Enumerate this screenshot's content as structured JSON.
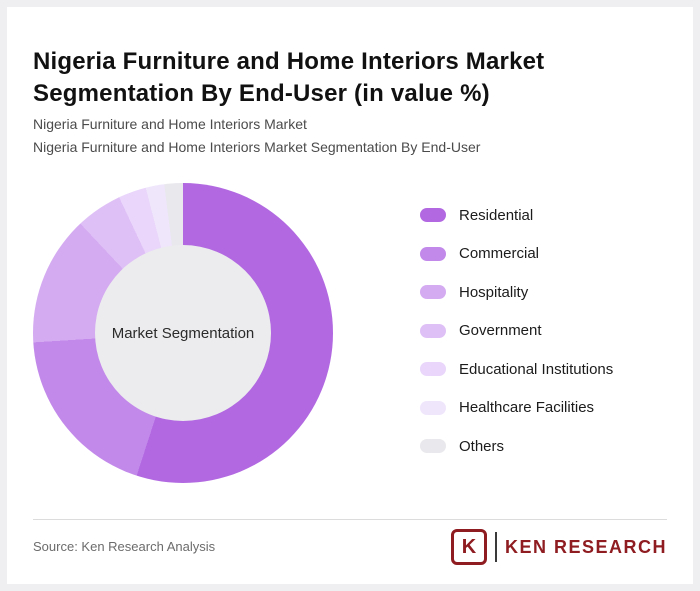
{
  "page": {
    "title": "Nigeria Furniture and Home Interiors Market Segmentation By End-User (in value %)",
    "subtitle_line1": "Nigeria Furniture and Home Interiors Market",
    "subtitle_line2": "Nigeria Furniture and Home Interiors Market Segmentation By End-User"
  },
  "chart_data": {
    "type": "pie",
    "subtype": "donut",
    "title": "Nigeria Furniture and Home Interiors Market Segmentation By End-User (in value %)",
    "units": "value %",
    "center_label": "Market Segmentation",
    "legend_position": "right",
    "start_angle_deg": 0,
    "direction": "clockwise",
    "hole_color": "#ececee",
    "segments": [
      {
        "label": "Residential",
        "value": 55,
        "color": "#b168e1"
      },
      {
        "label": "Commercial",
        "value": 19,
        "color": "#c288ea"
      },
      {
        "label": "Hospitality",
        "value": 14,
        "color": "#d4aaf1"
      },
      {
        "label": "Government",
        "value": 5,
        "color": "#dfc0f6"
      },
      {
        "label": "Educational Institutions",
        "value": 3,
        "color": "#e9d6fa"
      },
      {
        "label": "Healthcare Facilities",
        "value": 2,
        "color": "#efe6fc"
      },
      {
        "label": "Others",
        "value": 2,
        "color": "#e9e8ec"
      }
    ]
  },
  "footer": {
    "source": "Source: Ken Research Analysis",
    "logo_mark": "K",
    "logo_text": "KEN RESEARCH"
  }
}
